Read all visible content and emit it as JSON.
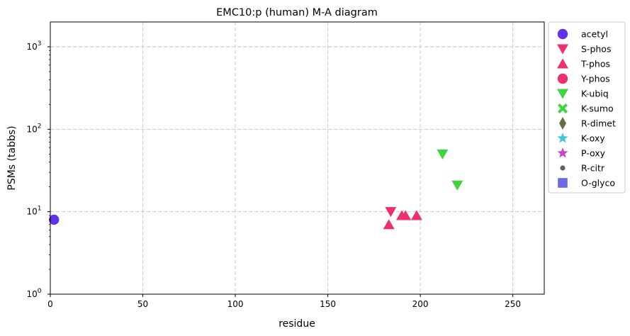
{
  "chart_data": {
    "type": "scatter",
    "title": "EMC10:p (human) M-A diagram",
    "xlabel": "residue",
    "ylabel": "PSMs (tabbs)",
    "xlim": [
      0,
      267
    ],
    "ylim": [
      1,
      2000
    ],
    "yscale": "log",
    "grid": true,
    "legend_position": "outside-right",
    "x_ticks": [
      0,
      50,
      100,
      150,
      200,
      250
    ],
    "y_ticks": [
      {
        "value": 1,
        "base": "10",
        "exp": "0"
      },
      {
        "value": 10,
        "base": "10",
        "exp": "1"
      },
      {
        "value": 100,
        "base": "10",
        "exp": "2"
      },
      {
        "value": 1000,
        "base": "10",
        "exp": "3"
      }
    ],
    "series": [
      {
        "name": "acetyl",
        "marker": "circle",
        "color": "#5f33ee",
        "points": [
          [
            2,
            8
          ]
        ]
      },
      {
        "name": "S-phos",
        "marker": "triangle-down",
        "color": "#f0306a",
        "points": [
          [
            184,
            10
          ]
        ]
      },
      {
        "name": "T-phos",
        "marker": "triangle-up",
        "color": "#f0306a",
        "points": [
          [
            183,
            7
          ],
          [
            190,
            9
          ],
          [
            192,
            9
          ],
          [
            198,
            9
          ]
        ]
      },
      {
        "name": "Y-phos",
        "marker": "circle",
        "color": "#f0306a",
        "points": []
      },
      {
        "name": "K-ubiq",
        "marker": "triangle-down",
        "color": "#3fd43f",
        "points": [
          [
            212,
            50
          ],
          [
            220,
            21
          ]
        ]
      },
      {
        "name": "K-sumo",
        "marker": "x-cross",
        "color": "#3fd43f",
        "points": []
      },
      {
        "name": "R-dimet",
        "marker": "diamond-thin",
        "color": "#6b6b45",
        "points": []
      },
      {
        "name": "K-oxy",
        "marker": "star",
        "color": "#3fc8d6",
        "points": []
      },
      {
        "name": "P-oxy",
        "marker": "star",
        "color": "#c844c8",
        "points": []
      },
      {
        "name": "R-citr",
        "marker": "small-circle",
        "color": "#606060",
        "points": []
      },
      {
        "name": "O-glyco",
        "marker": "square",
        "color": "#6b6be6",
        "points": []
      }
    ]
  }
}
